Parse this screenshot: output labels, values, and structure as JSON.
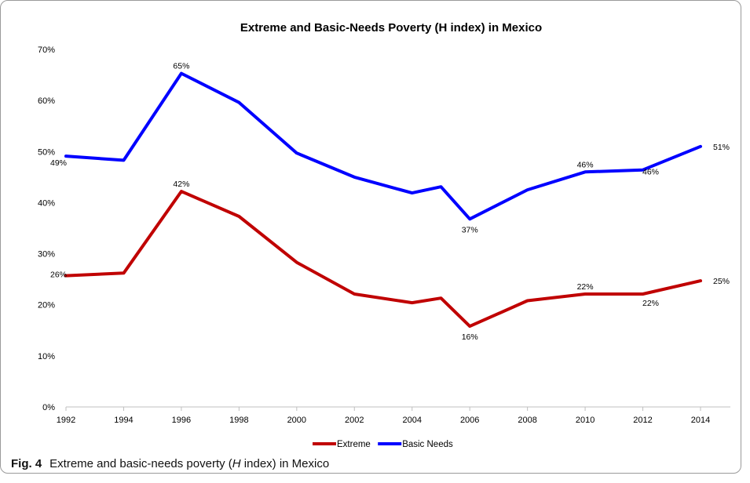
{
  "chart_data": {
    "type": "line",
    "title": "Extreme and Basic-Needs Poverty (H index) in Mexico",
    "xlabel": "",
    "ylabel": "",
    "x": [
      "1992",
      "1994",
      "1996",
      "1998",
      "2000",
      "2002",
      "2004",
      "2005",
      "2006",
      "2008",
      "2010",
      "2012",
      "2014"
    ],
    "x_ticks": [
      "1992",
      "1994",
      "1996",
      "1998",
      "2000",
      "2002",
      "2004",
      "2006",
      "2008",
      "2010",
      "2012",
      "2014"
    ],
    "ylim": [
      0,
      70
    ],
    "y_ticks": [
      "0%",
      "10%",
      "20%",
      "30%",
      "40%",
      "50%",
      "60%",
      "70%"
    ],
    "grid": false,
    "legend_position": "bottom",
    "series": [
      {
        "name": "Extreme",
        "color": "#c00000",
        "values": [
          25.7,
          26.2,
          42.2,
          37.3,
          28.3,
          22.1,
          20.4,
          21.3,
          15.8,
          20.8,
          22.1,
          22.1,
          24.7
        ],
        "labels": [
          "26%",
          "",
          "42%",
          "",
          "",
          "",
          "",
          "",
          "16%",
          "",
          "22%",
          "22%",
          "25%"
        ]
      },
      {
        "name": "Basic Needs",
        "color": "#0000ff",
        "values": [
          49.1,
          48.3,
          65.3,
          59.6,
          49.7,
          45.0,
          41.9,
          43.1,
          36.8,
          42.5,
          46.0,
          46.4,
          51.0
        ],
        "labels": [
          "49%",
          "",
          "65%",
          "",
          "",
          "",
          "",
          "",
          "37%",
          "",
          "46%",
          "46%",
          "51%"
        ]
      }
    ]
  },
  "caption": {
    "fig_label": "Fig. 4",
    "text_before": "Extreme and basic-needs poverty (",
    "text_italic": "H",
    "text_after": " index) in Mexico"
  }
}
